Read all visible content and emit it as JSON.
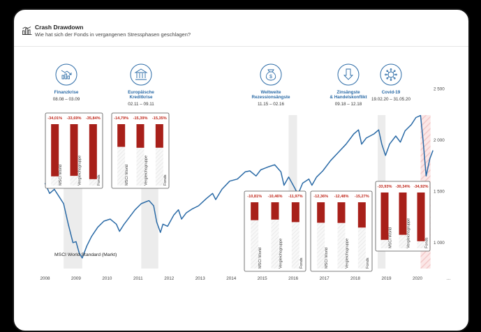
{
  "header": {
    "title": "Crash Drawdown",
    "subtitle": "Wie hat sich der Fonds in vergangenen Stressphasen geschlagen?"
  },
  "colors": {
    "accent": "#2a6aa6",
    "bar": "#a8201a",
    "pct": "#c0281c",
    "band": "#ececec",
    "covid_band": "#f3c9c9",
    "line": "#2a6aa6"
  },
  "chart_data": {
    "type": "line",
    "title": "Crash Drawdown",
    "series_label": "MSCI World Standard (Markt)",
    "x_ticks": [
      "2008",
      "2009",
      "2010",
      "2011",
      "2012",
      "2013",
      "2014",
      "2015",
      "2016",
      "2017",
      "2018",
      "2019",
      "2020",
      "…"
    ],
    "y_ticks": [
      {
        "label": "2 500",
        "value": 2500
      },
      {
        "label": "2 000",
        "value": 2000
      },
      {
        "label": "1 500",
        "value": 1500
      },
      {
        "label": "1 000",
        "value": 1000
      }
    ],
    "ylim": [
      700,
      2550
    ],
    "xlim": [
      2007.9,
      2020.9
    ],
    "series": [
      {
        "name": "MSCI World Standard (Markt)",
        "points": [
          [
            2008.0,
            1580
          ],
          [
            2008.15,
            1480
          ],
          [
            2008.3,
            1520
          ],
          [
            2008.45,
            1450
          ],
          [
            2008.6,
            1380
          ],
          [
            2008.75,
            1180
          ],
          [
            2008.9,
            1000
          ],
          [
            2009.0,
            1010
          ],
          [
            2009.1,
            900
          ],
          [
            2009.2,
            850
          ],
          [
            2009.35,
            970
          ],
          [
            2009.5,
            1060
          ],
          [
            2009.7,
            1150
          ],
          [
            2009.9,
            1210
          ],
          [
            2010.1,
            1230
          ],
          [
            2010.3,
            1180
          ],
          [
            2010.4,
            1110
          ],
          [
            2010.55,
            1180
          ],
          [
            2010.75,
            1260
          ],
          [
            2010.9,
            1320
          ],
          [
            2011.1,
            1380
          ],
          [
            2011.35,
            1410
          ],
          [
            2011.5,
            1360
          ],
          [
            2011.6,
            1200
          ],
          [
            2011.72,
            1100
          ],
          [
            2011.8,
            1180
          ],
          [
            2011.95,
            1160
          ],
          [
            2012.15,
            1270
          ],
          [
            2012.3,
            1320
          ],
          [
            2012.4,
            1230
          ],
          [
            2012.55,
            1290
          ],
          [
            2012.75,
            1330
          ],
          [
            2012.95,
            1360
          ],
          [
            2013.2,
            1430
          ],
          [
            2013.4,
            1480
          ],
          [
            2013.5,
            1420
          ],
          [
            2013.7,
            1520
          ],
          [
            2013.95,
            1600
          ],
          [
            2014.2,
            1620
          ],
          [
            2014.45,
            1690
          ],
          [
            2014.6,
            1700
          ],
          [
            2014.8,
            1650
          ],
          [
            2014.95,
            1710
          ],
          [
            2015.2,
            1740
          ],
          [
            2015.4,
            1760
          ],
          [
            2015.6,
            1690
          ],
          [
            2015.7,
            1560
          ],
          [
            2015.85,
            1640
          ],
          [
            2016.05,
            1530
          ],
          [
            2016.15,
            1470
          ],
          [
            2016.3,
            1580
          ],
          [
            2016.5,
            1620
          ],
          [
            2016.6,
            1560
          ],
          [
            2016.75,
            1640
          ],
          [
            2016.95,
            1700
          ],
          [
            2017.2,
            1800
          ],
          [
            2017.45,
            1880
          ],
          [
            2017.7,
            1960
          ],
          [
            2017.95,
            2060
          ],
          [
            2018.1,
            2100
          ],
          [
            2018.2,
            1960
          ],
          [
            2018.35,
            2020
          ],
          [
            2018.6,
            2060
          ],
          [
            2018.75,
            2100
          ],
          [
            2018.85,
            1960
          ],
          [
            2018.97,
            1850
          ],
          [
            2019.1,
            1960
          ],
          [
            2019.3,
            2040
          ],
          [
            2019.45,
            1980
          ],
          [
            2019.6,
            2090
          ],
          [
            2019.8,
            2150
          ],
          [
            2019.95,
            2220
          ],
          [
            2020.1,
            2240
          ],
          [
            2020.18,
            2000
          ],
          [
            2020.28,
            1650
          ],
          [
            2020.4,
            1820
          ],
          [
            2020.5,
            1900
          ]
        ]
      }
    ],
    "events": [
      {
        "name": [
          "Finanzkrise"
        ],
        "dates": "08.08 – 03.09",
        "icon": "chart-down-icon",
        "x_center": 2008.55,
        "band": [
          2008.6,
          2009.2
        ]
      },
      {
        "name": [
          "Europäische",
          "Kreditkrise"
        ],
        "dates": "02.11 – 09.11",
        "icon": "bank-icon",
        "x_center": 2011.55,
        "band": [
          2011.1,
          2011.65
        ]
      },
      {
        "name": [
          "Weltweite",
          "Rezessionsängste"
        ],
        "dates": "11.15 – 02.16",
        "icon": "money-bag-icon",
        "x_center": 2016.0,
        "band": [
          2015.85,
          2016.12
        ]
      },
      {
        "name": [
          "Zinsängste",
          "& Handelskonflikt"
        ],
        "dates": "09.18 – 12.18",
        "icon": "arrow-down-icon",
        "x_center": 2018.75,
        "band": [
          2018.72,
          2018.97
        ]
      },
      {
        "name": [
          "Covid-19"
        ],
        "dates": "19.02.20 – 31.05.20",
        "icon": "virus-icon",
        "x_center": 2019.75,
        "band": [
          2020.1,
          2020.42
        ]
      }
    ],
    "drawdowns": [
      {
        "event": "Finanzkrise",
        "labels": [
          "MSCI World",
          "Vergleichsgruppe",
          "Fonds"
        ],
        "pct_labels": [
          "-34,01%",
          "-33,69%",
          "-35,84%"
        ],
        "values": [
          34.01,
          33.69,
          35.84
        ]
      },
      {
        "event": "Europäische Kreditkrise",
        "labels": [
          "MSCI World",
          "Vergleichsgruppe",
          "Fonds"
        ],
        "pct_labels": [
          "-14,79%",
          "-15,39%",
          "-15,35%"
        ],
        "values": [
          14.79,
          15.39,
          15.35
        ]
      },
      {
        "event": "Weltweite Rezessionsängste",
        "labels": [
          "MSCI World",
          "Vergleichsgruppe",
          "Fonds"
        ],
        "pct_labels": [
          "-10,81%",
          "-10,46%",
          "-11,97%"
        ],
        "values": [
          10.81,
          10.46,
          11.97
        ]
      },
      {
        "event": "Zinsängste & Handelskonflikt",
        "labels": [
          "MSCI World",
          "Vergleichsgruppe",
          "Fonds"
        ],
        "pct_labels": [
          "-12,36%",
          "-12,48%",
          "-15,27%"
        ],
        "values": [
          12.36,
          12.48,
          15.27
        ]
      },
      {
        "event": "Covid-19",
        "labels": [
          "MSCI World",
          "Vergleichsgruppe",
          "Fonds"
        ],
        "pct_labels": [
          "-33,93%",
          "-30,34%",
          "-34,92%"
        ],
        "values": [
          33.93,
          30.34,
          34.92
        ]
      }
    ]
  }
}
